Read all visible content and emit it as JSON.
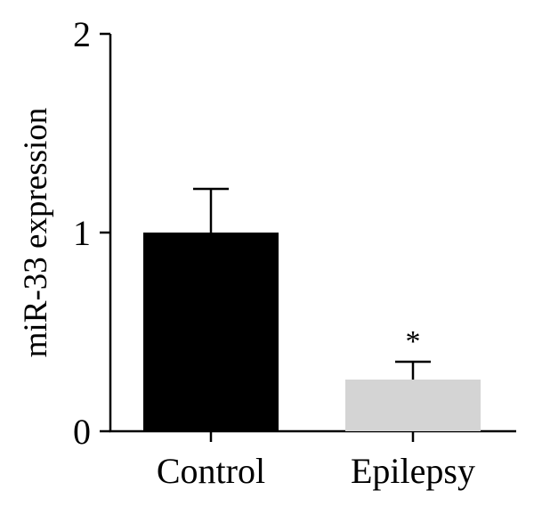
{
  "chart_data": {
    "type": "bar",
    "categories": [
      "Control",
      "Epilepsy"
    ],
    "values": [
      1.0,
      0.26
    ],
    "error_upper": [
      0.22,
      0.09
    ],
    "bar_colors": [
      "#000000",
      "#d4d4d4"
    ],
    "significance": [
      "",
      "*"
    ],
    "title": "",
    "xlabel": "",
    "ylabel": "miR-33 expression",
    "ylim": [
      0,
      2
    ],
    "yticks": [
      0,
      1,
      2
    ],
    "ytick_labels": [
      "0",
      "1",
      "2"
    ],
    "grid": false
  }
}
